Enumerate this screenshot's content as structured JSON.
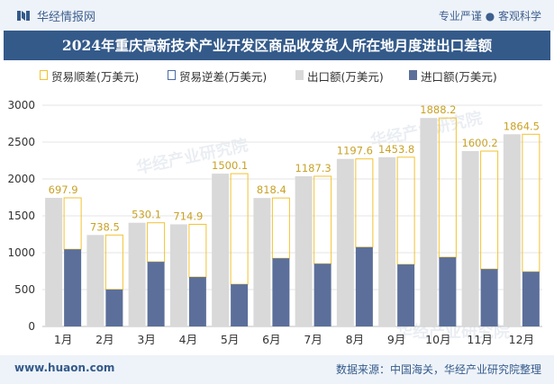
{
  "header": {
    "brand": "华经情报网",
    "tagline": "专业严谨 ● 客观科学"
  },
  "footer": {
    "url": "www.huaon.com",
    "source": "数据来源：中国海关，华经产业研究院整理"
  },
  "watermark": "华经产业研究院",
  "colors": {
    "export": "#d9d9d9",
    "import": "#5b6f9a",
    "surplus_border": "#f2c230",
    "deficit_border": "#4a6aa5",
    "title_bg": "#345a8a"
  },
  "legend": [
    {
      "label": "贸易顺差(万美元)",
      "kind": "surplus"
    },
    {
      "label": "贸易逆差(万美元)",
      "kind": "deficit"
    },
    {
      "label": "出口额(万美元)",
      "kind": "export"
    },
    {
      "label": "进口额(万美元)",
      "kind": "import"
    }
  ],
  "chart_data": {
    "type": "bar",
    "title": "2024年重庆高新技术产业开发区商品收发货人所在地月度进出口差额",
    "categories": [
      "1月",
      "2月",
      "3月",
      "4月",
      "5月",
      "6月",
      "7月",
      "8月",
      "9月",
      "10月",
      "11月",
      "12月"
    ],
    "series": [
      {
        "name": "出口额(万美元)",
        "values": [
          1744,
          1240,
          1406,
          1385,
          2072,
          1742,
          2037,
          2272,
          2295,
          2827,
          2378,
          2606
        ]
      },
      {
        "name": "进口额(万美元)",
        "values": [
          1046,
          501,
          876,
          670,
          572,
          924,
          850,
          1075,
          841,
          938,
          778,
          741
        ]
      },
      {
        "name": "贸易顺差(万美元)",
        "values": [
          697.9,
          738.5,
          530.1,
          714.9,
          1500.1,
          818.4,
          1187.3,
          1197.6,
          1453.8,
          1888.2,
          1600.2,
          1864.5
        ]
      }
    ],
    "surplus_labels": [
      "697.9",
      "738.5",
      "530.1",
      "714.9",
      "1500.1",
      "818.4",
      "1187.3",
      "1197.6",
      "1453.8",
      "1888.2",
      "1600.2",
      "1864.5"
    ],
    "ylim": [
      0,
      3000
    ],
    "yticks": [
      0,
      500,
      1000,
      1500,
      2000,
      2500,
      3000
    ],
    "xlabel": "",
    "ylabel": ""
  }
}
